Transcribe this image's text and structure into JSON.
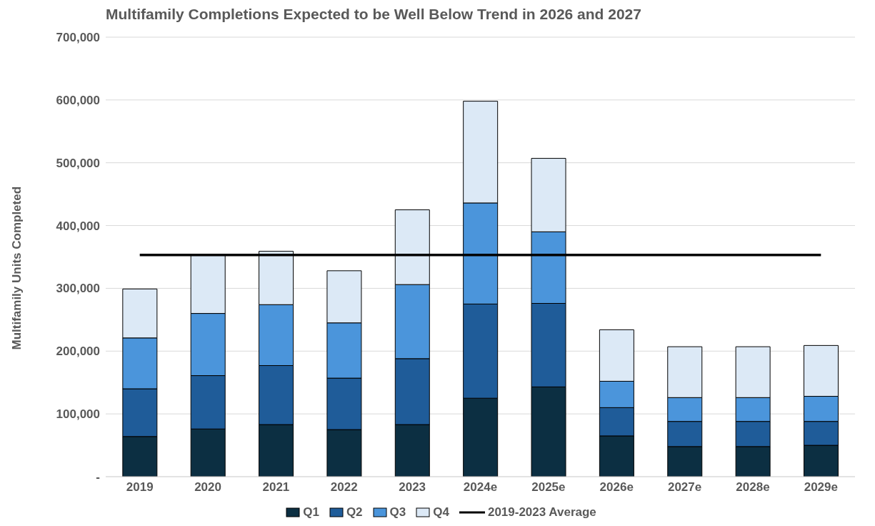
{
  "chart_data": {
    "type": "bar",
    "title": "Multifamily Completions Expected to be Well Below Trend in 2026 and 2027",
    "ylabel": "Multifamily Units Completed",
    "categories": [
      "2019",
      "2020",
      "2021",
      "2022",
      "2023",
      "2024e",
      "2025e",
      "2026e",
      "2027e",
      "2028e",
      "2029e"
    ],
    "stacked": true,
    "series": [
      {
        "name": "Q1",
        "color": "#0c2f42",
        "values": [
          64000,
          76000,
          83000,
          75000,
          83000,
          125000,
          143000,
          65000,
          48000,
          48000,
          50000
        ]
      },
      {
        "name": "Q2",
        "color": "#1f5c99",
        "values": [
          76000,
          85000,
          94000,
          82000,
          105000,
          150000,
          133000,
          45000,
          40000,
          40000,
          38000
        ]
      },
      {
        "name": "Q3",
        "color": "#4b95db",
        "values": [
          81000,
          99000,
          97000,
          88000,
          118000,
          161000,
          114000,
          42000,
          38000,
          38000,
          40000
        ]
      },
      {
        "name": "Q4",
        "color": "#dce9f6",
        "values": [
          78000,
          93000,
          85000,
          83000,
          119000,
          162000,
          117000,
          82000,
          81000,
          81000,
          81000
        ]
      },
      {
        "name": "2019-2023 Average",
        "type": "line",
        "color": "#000000",
        "values": [
          353000,
          353000,
          353000,
          353000,
          353000,
          353000,
          353000,
          353000,
          353000,
          353000,
          353000
        ]
      }
    ],
    "ylim": [
      0,
      700000
    ],
    "yticks": [
      {
        "value": 0,
        "label": "-"
      },
      {
        "value": 100000,
        "label": "100,000"
      },
      {
        "value": 200000,
        "label": "200,000"
      },
      {
        "value": 300000,
        "label": "300,000"
      },
      {
        "value": 400000,
        "label": "400,000"
      },
      {
        "value": 500000,
        "label": "500,000"
      },
      {
        "value": 600000,
        "label": "600,000"
      },
      {
        "value": 700000,
        "label": "700,000"
      }
    ],
    "grid": "y",
    "legend": "bottom",
    "marker": "none"
  }
}
